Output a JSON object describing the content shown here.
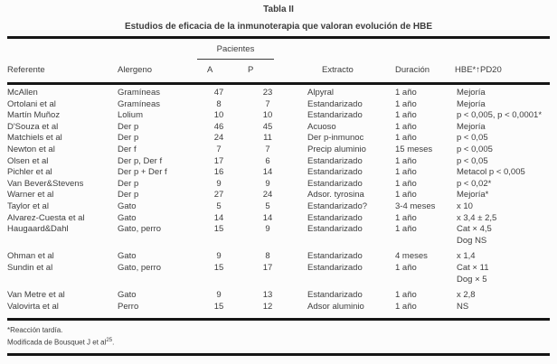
{
  "page": {
    "title": "Tabla II",
    "subtitle": "Estudios de eficacia de la inmunoterapia que valoran evolución de HBE"
  },
  "table": {
    "group_header": "Pacientes",
    "columns": [
      "Referente",
      "Alergeno",
      "A",
      "P",
      "Extracto",
      "Duración",
      "HBE*↑PD20"
    ],
    "rows": [
      [
        "McAllen",
        "Gramíneas",
        "47",
        "23",
        "Alpyral",
        "1 año",
        "Mejoría"
      ],
      [
        "Ortolani et al",
        "Gramíneas",
        "8",
        "7",
        "Estandarizado",
        "1 año",
        "Mejoría"
      ],
      [
        "Martín Muñoz",
        "Lolium",
        "10",
        "10",
        "Estandarizado",
        "1 año",
        "p < 0,005, p < 0,0001*"
      ],
      [
        "D'Souza et al",
        "Der p",
        "46",
        "45",
        "Acuoso",
        "1 año",
        "Mejoría"
      ],
      [
        "Matchiels et al",
        "Der p",
        "24",
        "11",
        "Der p-inmunoc",
        "1 año",
        "p < 0,05"
      ],
      [
        "Newton et al",
        "Der f",
        "7",
        "7",
        "Precip aluminio",
        "15 meses",
        "p < 0,005"
      ],
      [
        "Olsen et al",
        "Der p, Der f",
        "17",
        "6",
        "Estandarizado",
        "1 año",
        "p < 0,05"
      ],
      [
        "Pichler et al",
        "Der p + Der f",
        "16",
        "14",
        "Estandarizado",
        "1 año",
        "Metacol p < 0,005"
      ],
      [
        "Van Bever&Stevens",
        "Der p",
        "9",
        "9",
        "Estandarizado",
        "1 año",
        "p < 0,02*"
      ],
      [
        "Warner et al",
        "Der p",
        "27",
        "24",
        "Adsor. tyrosina",
        "1 año",
        "Mejoría*"
      ],
      [
        "Taylor et al",
        "Gato",
        "5",
        "5",
        "Estandarizado?",
        "3-4 meses",
        "x 10"
      ],
      [
        "Alvarez-Cuesta et al",
        "Gato",
        "14",
        "14",
        "Estandarizado",
        "1 año",
        "x 3,4 ± 2,5"
      ],
      [
        "Haugaard&Dahl",
        "Gato, perro",
        "15",
        "9",
        "Estandarizado",
        "1 año",
        "Cat × 4,5"
      ],
      [
        "",
        "",
        "",
        "",
        "",
        "",
        "Dog NS"
      ],
      [
        "Ohman et al",
        "Gato",
        "9",
        "8",
        "Estandarizado",
        "4 meses",
        "x 1,4"
      ],
      [
        "Sundin et al",
        "Gato, perro",
        "15",
        "17",
        "Estandarizado",
        "1 año",
        "Cat × 11"
      ],
      [
        "",
        "",
        "",
        "",
        "",
        "",
        "Dog × 5"
      ],
      [
        "Van Metre et al",
        "Gato",
        "9",
        "13",
        "Estandarizado",
        "1 año",
        "x 2,8"
      ],
      [
        "Valovirta et al",
        "Perro",
        "15",
        "12",
        "Adsor aluminio",
        "1 año",
        "NS"
      ]
    ]
  },
  "footnotes": {
    "line1": "*Reacción tardía.",
    "line2_text": "Modificada de Bousquet J et al",
    "line2_sup": "25",
    "line2_end": "."
  },
  "colors": {
    "text": "#3d3d3d",
    "rule": "#161616",
    "background": "#fcfcfc"
  }
}
